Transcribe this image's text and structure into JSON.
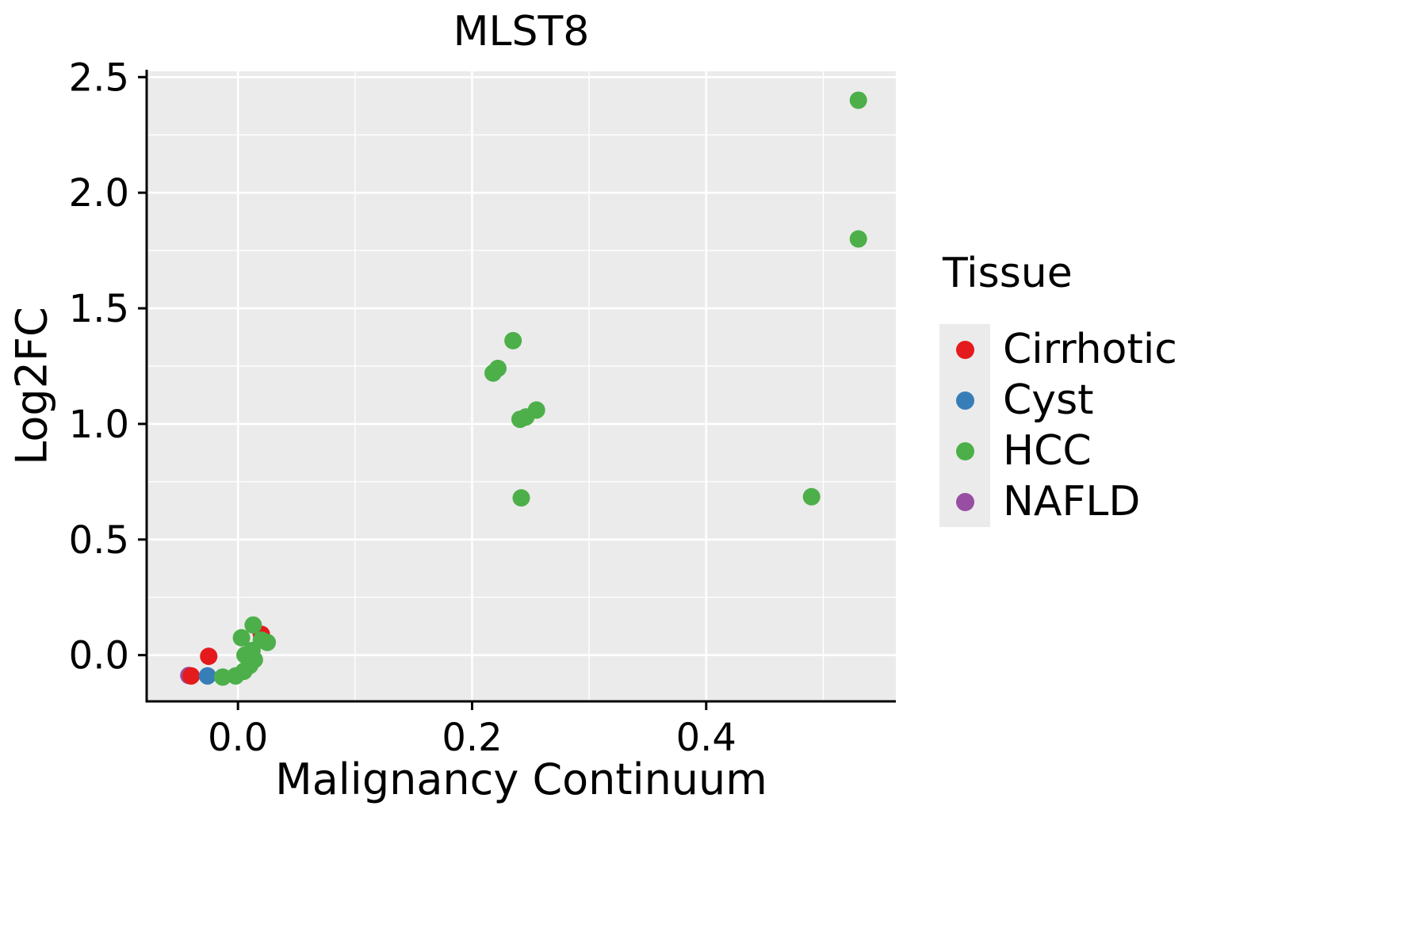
{
  "chart_data": {
    "type": "scatter",
    "title": "MLST8",
    "xlabel": "Malignancy Continuum",
    "ylabel": "Log2FC",
    "xlim": [
      -0.078,
      0.562
    ],
    "ylim": [
      -0.2,
      2.525
    ],
    "x_ticks": [
      0.0,
      0.2,
      0.4
    ],
    "y_ticks": [
      0.0,
      0.5,
      1.0,
      1.5,
      2.0,
      2.5
    ],
    "x_minor_ticks": [
      0.1,
      0.3,
      0.5
    ],
    "y_minor_ticks": [
      0.25,
      0.75,
      1.25,
      1.75,
      2.25
    ],
    "panel_color": "#EBEBEB",
    "grid_color": "#FFFFFF",
    "legend": {
      "title": "Tissue",
      "items": [
        {
          "label": "Cirrhotic",
          "color": "#E41A1C"
        },
        {
          "label": "Cyst",
          "color": "#377EB8"
        },
        {
          "label": "HCC",
          "color": "#4DAF4A"
        },
        {
          "label": "NAFLD",
          "color": "#984EA3"
        }
      ]
    },
    "series": [
      {
        "name": "NAFLD",
        "color": "#984EA3",
        "points": [
          [
            -0.042,
            -0.088
          ]
        ]
      },
      {
        "name": "Cirrhotic",
        "color": "#E41A1C",
        "points": [
          [
            -0.04,
            -0.09
          ],
          [
            -0.025,
            -0.005
          ],
          [
            0.02,
            0.09
          ]
        ]
      },
      {
        "name": "Cyst",
        "color": "#377EB8",
        "points": [
          [
            -0.026,
            -0.09
          ]
        ]
      },
      {
        "name": "HCC",
        "color": "#4DAF4A",
        "points": [
          [
            0.53,
            2.4
          ],
          [
            0.53,
            1.8
          ],
          [
            0.235,
            1.36
          ],
          [
            0.222,
            1.24
          ],
          [
            0.218,
            1.22
          ],
          [
            0.255,
            1.06
          ],
          [
            0.246,
            1.03
          ],
          [
            0.241,
            1.02
          ],
          [
            0.242,
            0.68
          ],
          [
            0.49,
            0.685
          ],
          [
            0.013,
            0.13
          ],
          [
            0.003,
            0.075
          ],
          [
            0.02,
            0.065
          ],
          [
            0.025,
            0.055
          ],
          [
            0.012,
            0.02
          ],
          [
            0.006,
            0.0
          ],
          [
            0.014,
            -0.02
          ],
          [
            0.01,
            -0.045
          ],
          [
            0.005,
            -0.07
          ],
          [
            -0.013,
            -0.095
          ],
          [
            -0.002,
            -0.09
          ]
        ]
      }
    ]
  }
}
